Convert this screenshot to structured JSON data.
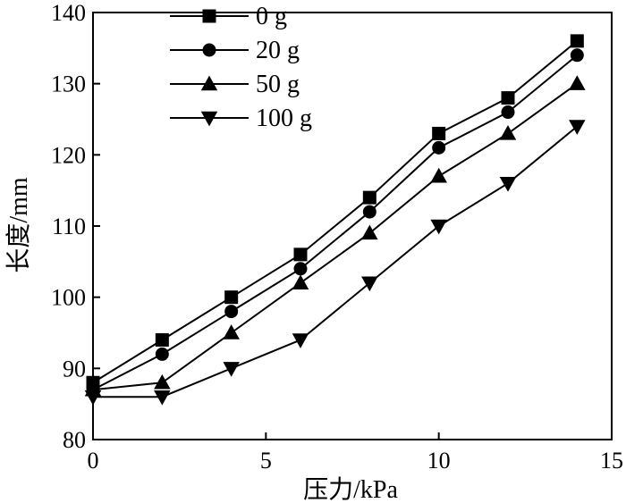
{
  "chart_data": {
    "type": "line",
    "title": "",
    "xlabel": "压力/kPa",
    "ylabel": "长度/mm",
    "xlim": [
      0,
      15
    ],
    "ylim": [
      80,
      140
    ],
    "xticks": [
      0,
      5,
      10,
      15
    ],
    "yticks": [
      80,
      90,
      100,
      110,
      120,
      130,
      140
    ],
    "grid": false,
    "legend_position": "top-left",
    "x": [
      0,
      2,
      4,
      6,
      8,
      10,
      12,
      14
    ],
    "series": [
      {
        "name": "0 g",
        "marker": "square",
        "values": [
          88,
          94,
          100,
          106,
          114,
          123,
          128,
          136
        ]
      },
      {
        "name": "20 g",
        "marker": "circle",
        "values": [
          87,
          92,
          98,
          104,
          112,
          121,
          126,
          134
        ]
      },
      {
        "name": "50 g",
        "marker": "triangle-up",
        "values": [
          87,
          88,
          95,
          102,
          109,
          117,
          123,
          130
        ]
      },
      {
        "name": "100 g",
        "marker": "triangle-down",
        "values": [
          86,
          86,
          90,
          94,
          102,
          110,
          116,
          124
        ]
      }
    ]
  }
}
